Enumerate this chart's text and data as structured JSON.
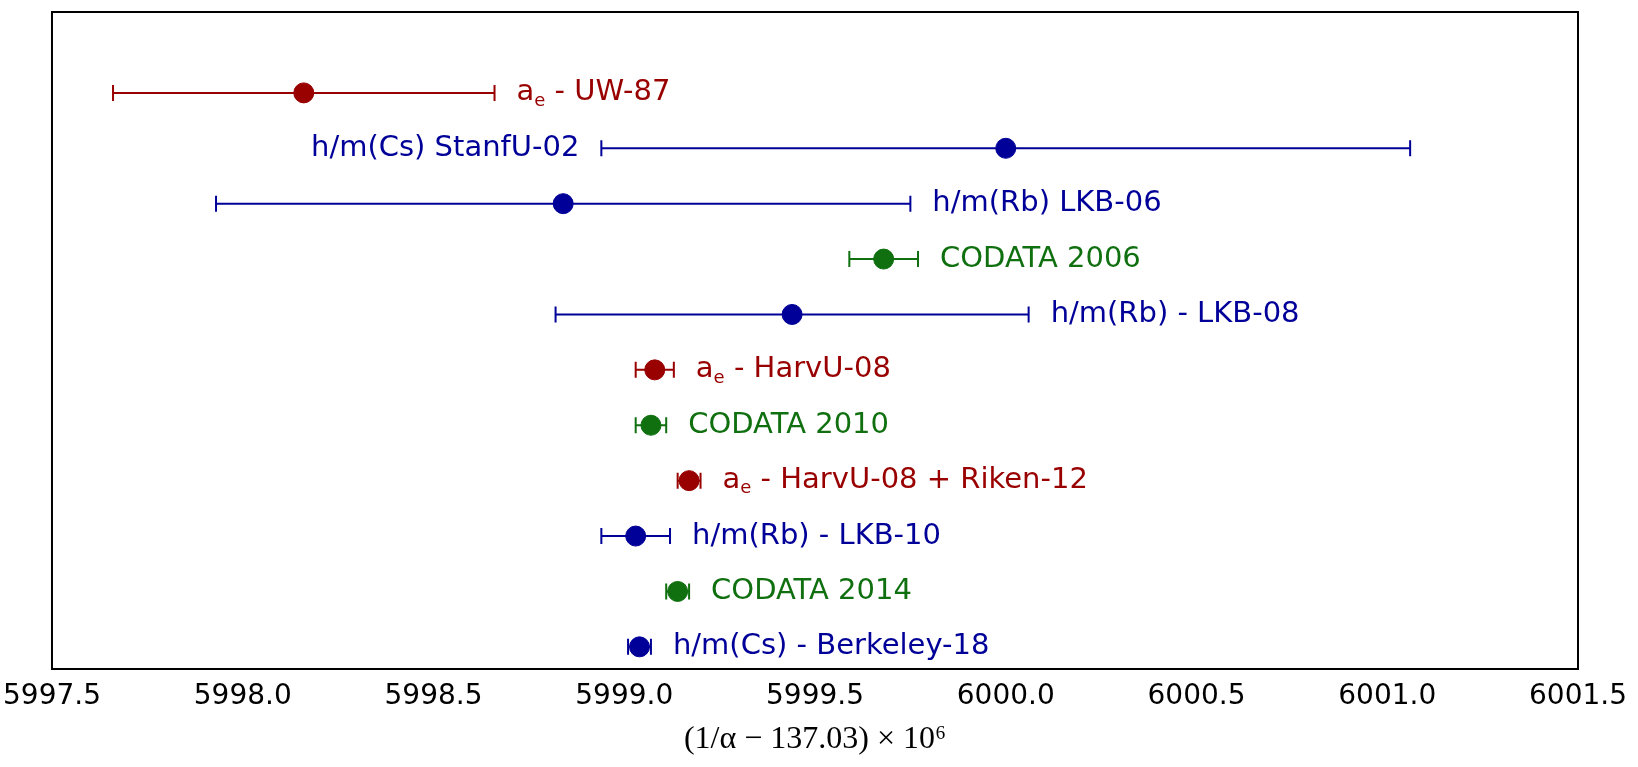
{
  "chart_data": {
    "type": "scatter",
    "orientation": "horizontal",
    "marker": "circle",
    "grid": false,
    "legend": false,
    "tick_labels": "x",
    "xlabel": "(1/α − 137.03) × 10⁶",
    "categories": [
      "a$_{e}$ - UW-87",
      "h/m(Cs) StanfU-02",
      "h/m(Rb) LKB-06",
      "CODATA 2006",
      "h/m(Rb) - LKB-08",
      "a$_{e}$ - HarvU-08",
      "CODATA 2010",
      "a$_{e}$ - HarvU-08 + Riken-12",
      "h/m(Rb) - LKB-10",
      "CODATA 2014",
      "h/m(Cs) - Berkeley-18"
    ],
    "values": [
      5998.16,
      6000.0,
      5998.84,
      5999.68,
      5999.44,
      5999.08,
      5999.07,
      5999.17,
      5999.03,
      5999.14,
      5999.04
    ],
    "errors": [
      0.5,
      1.06,
      0.91,
      0.09,
      0.62,
      0.05,
      0.04,
      0.03,
      0.09,
      0.03,
      0.03
    ],
    "colors": [
      "#990000",
      "#000099",
      "#000099",
      "#107010",
      "#000099",
      "#990000",
      "#107010",
      "#990000",
      "#000099",
      "#107010",
      "#000099"
    ],
    "xlim": [
      5997.5,
      6001.5
    ],
    "xticks": [
      {
        "value": 5997.5,
        "label": "5997.5"
      },
      {
        "value": 5998,
        "label": "5998.0"
      },
      {
        "value": 5998.5,
        "label": "5998.5"
      },
      {
        "value": 5999,
        "label": "5999.0"
      },
      {
        "value": 5999.5,
        "label": "5999.5"
      },
      {
        "value": 6000,
        "label": "6000.0"
      },
      {
        "value": 6000.5,
        "label": "6000.5"
      },
      {
        "value": 6001,
        "label": "6001.0"
      },
      {
        "value": 6001.5,
        "label": "6001.5"
      }
    ]
  }
}
